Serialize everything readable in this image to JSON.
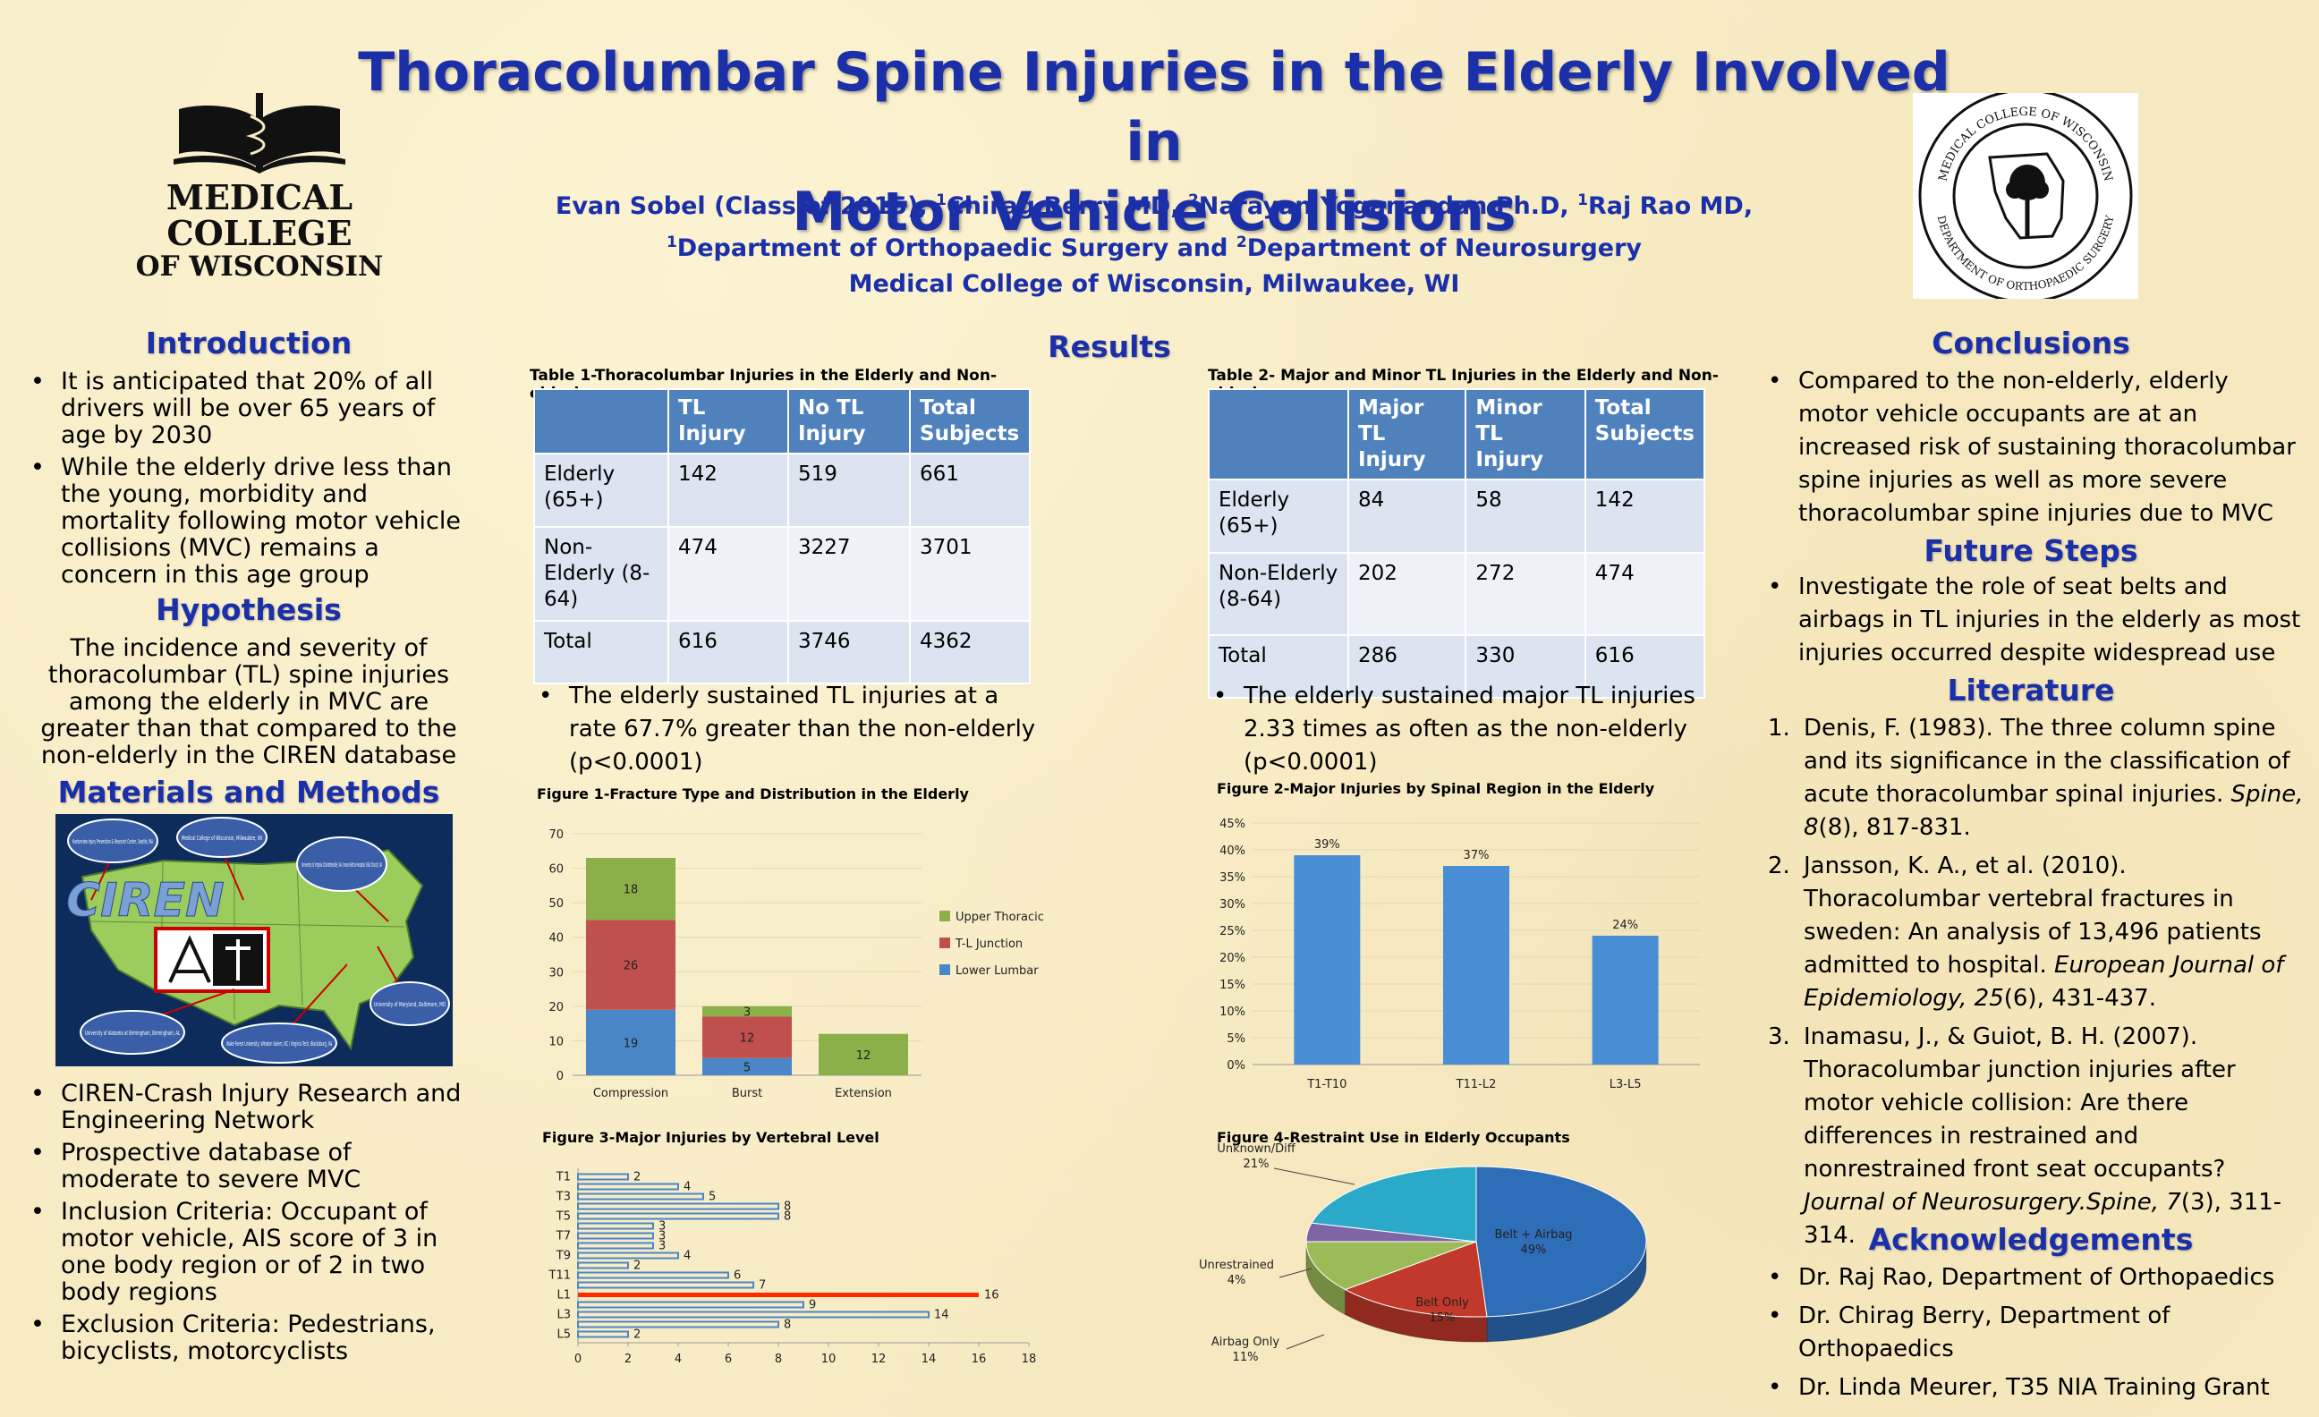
{
  "header": {
    "title_line1": "Thoracolumbar Spine Injuries in the Elderly Involved in",
    "title_line2": "Motor Vehicle Collisions",
    "authors": {
      "a1": "Evan Sobel (Class of 2015), ",
      "s1": "1",
      "a2": "Chirag Berry MD,  ",
      "s2": "2",
      "a3": "Narayan Yoganandan Ph.D, ",
      "s3": "1",
      "a4": "Raj Rao MD,"
    },
    "departments": {
      "s1": "1",
      "d1": "Department of Orthopaedic Surgery and ",
      "s2": "2",
      "d2": "Department of Neurosurgery"
    },
    "institution": "Medical College of Wisconsin, Milwaukee, WI"
  },
  "logo_left": {
    "line1": "MEDICAL",
    "line2": "COLLEGE",
    "line3": "OF WISCONSIN"
  },
  "logo_right": {
    "top_text": "MEDICAL COLLEGE OF WISCONSIN",
    "bottom_text": "DEPARTMENT OF ORTHOPAEDIC SURGERY"
  },
  "introduction": {
    "heading": "Introduction",
    "bullets": [
      "It is anticipated that 20% of all drivers will be over 65 years of age by 2030",
      "While the elderly drive less than the young, morbidity and mortality following motor vehicle collisions (MVC) remains a concern in this age group"
    ]
  },
  "hypothesis": {
    "heading": "Hypothesis",
    "text": "The incidence and severity of thoracolumbar (TL) spine injuries among the elderly in MVC are greater than that compared to the non-elderly in the CIREN database"
  },
  "methods": {
    "heading": "Materials and Methods",
    "map_label": "CIREN",
    "map_sites": [
      "Harborview Injury Prevention & Research Center, Seattle, WA",
      "Medical College of Wisconsin, Milwaukee, WI",
      "University of Virginia Charlottesville, VA / Inova Fairfax Hospital, Falls Church, VA",
      "University of Maryland, Baltimore, MD",
      "Wake Forest University, Winston Salem, NC / Virginia Tech, Blacksburg, VA",
      "University of Alabama at Birmingham, Birmingham, AL"
    ],
    "bullets": [
      "CIREN-Crash Injury Research and Engineering Network",
      "Prospective database of moderate to severe MVC",
      "Inclusion Criteria: Occupant of motor vehicle, AIS score of 3 in one body region or of 2 in two body regions",
      "Exclusion Criteria: Pedestrians, bicyclists, motorcyclists"
    ]
  },
  "results": {
    "heading": "Results",
    "table1": {
      "caption": "Table 1-Thoracolumbar Injuries in the Elderly and Non-elderly",
      "headers": [
        "",
        "TL Injury",
        "No TL Injury",
        "Total Subjects"
      ],
      "rows": [
        [
          "Elderly (65+)",
          "142",
          "519",
          "661"
        ],
        [
          "Non-Elderly (8-64)",
          "474",
          "3227",
          "3701"
        ],
        [
          "Total",
          "616",
          "3746",
          "4362"
        ]
      ],
      "note": "The elderly sustained TL injuries at a rate 67.7% greater than the non-elderly (p<0.0001)"
    },
    "table2": {
      "caption": "Table 2- Major and Minor TL Injuries in the Elderly and Non-elderly",
      "headers": [
        "",
        "Major TL Injury",
        "Minor TL Injury",
        "Total Subjects"
      ],
      "rows": [
        [
          "Elderly (65+)",
          "84",
          "58",
          "142"
        ],
        [
          "Non-Elderly (8-64)",
          "202",
          "272",
          "474"
        ],
        [
          "Total",
          "286",
          "330",
          "616"
        ]
      ],
      "note": "The elderly sustained major TL injuries 2.33 times as often as the non-elderly (p<0.0001)"
    }
  },
  "conclusions": {
    "heading": "Conclusions",
    "bullets": [
      "Compared to the non-elderly, elderly motor vehicle occupants are at an increased risk of sustaining thoracolumbar spine injuries as well as more severe thoracolumbar spine injuries due to MVC"
    ]
  },
  "future": {
    "heading": "Future Steps",
    "bullets": [
      "Investigate the role of seat belts and airbags in TL injuries in the elderly as most injuries occurred despite widespread use"
    ]
  },
  "literature": {
    "heading": "Literature",
    "refs": [
      {
        "num": "1.",
        "pre": "Denis, F. (1983). The three column spine and its significance in the classification of acute thoracolumbar spinal injuries. ",
        "journal": "Spine, 8",
        "post": "(8), 817-831."
      },
      {
        "num": "2.",
        "pre": "Jansson, K. A., et al. (2010). Thoracolumbar vertebral fractures in sweden: An analysis of 13,496 patients admitted to hospital. ",
        "journal": "European Journal of Epidemiology, 25",
        "post": "(6), 431-437."
      },
      {
        "num": "3.",
        "pre": "Inamasu, J., & Guiot, B. H. (2007). Thoracolumbar junction injuries after motor vehicle collision: Are there differences in restrained and nonrestrained front seat occupants? ",
        "journal": "Journal of Neurosurgery.Spine, 7",
        "post": "(3), 311-314."
      }
    ]
  },
  "acknowledgements": {
    "heading": "Acknowledgements",
    "bullets": [
      "Dr. Raj Rao, Department of Orthopaedics",
      "Dr. Chirag Berry, Department of Orthopaedics",
      "Dr. Linda Meurer, T35 NIA Training Grant"
    ]
  },
  "colors": {
    "title": "#1a2fa8",
    "lower_lumbar": "#4a86c8",
    "tl_junction": "#c0504d",
    "upper_thoracic": "#8bb04a",
    "table_header": "#4f81bd",
    "fig3_bar": "#4a86c8",
    "fig3_highlight": "#ff2a00"
  },
  "chart_data": [
    {
      "id": "fig1",
      "type": "bar",
      "stacked": true,
      "title": "Figure 1-Fracture Type and Distribution in the Elderly",
      "categories": [
        "Compression",
        "Burst",
        "Extension"
      ],
      "series": [
        {
          "name": "Lower Lumbar",
          "color": "#4a86c8",
          "values": [
            19,
            5,
            0
          ]
        },
        {
          "name": "T-L Junction",
          "color": "#c0504d",
          "values": [
            26,
            12,
            0
          ]
        },
        {
          "name": "Upper Thoracic",
          "color": "#8bb04a",
          "values": [
            18,
            3,
            12
          ]
        }
      ],
      "legend_order": [
        "Upper Thoracic",
        "T-L Junction",
        "Lower Lumbar"
      ],
      "ylim": [
        0,
        70
      ],
      "yticks": [
        0,
        10,
        20,
        30,
        40,
        50,
        60,
        70
      ],
      "legend": "right"
    },
    {
      "id": "fig2",
      "type": "bar",
      "title": "Figure 2-Major Injuries by Spinal Region in the Elderly",
      "categories": [
        "T1-T10",
        "T11-L2",
        "L3-L5"
      ],
      "values": [
        39,
        37,
        24
      ],
      "labels": [
        "39%",
        "37%",
        "24%"
      ],
      "ylim": [
        0,
        45
      ],
      "yticks": [
        "0%",
        "5%",
        "10%",
        "15%",
        "20%",
        "25%",
        "30%",
        "35%",
        "40%",
        "45%"
      ]
    },
    {
      "id": "fig3",
      "type": "bar",
      "orientation": "horizontal",
      "title": "Figure 3-Major Injuries by Vertebral Level",
      "categories": [
        "T1",
        "T2",
        "T3",
        "T4",
        "T5",
        "T6",
        "T7",
        "T8",
        "T9",
        "T10",
        "T11",
        "T12",
        "L1",
        "L2",
        "L3",
        "L4",
        "L5"
      ],
      "values": [
        2,
        4,
        5,
        8,
        8,
        3,
        3,
        3,
        4,
        2,
        6,
        7,
        16,
        9,
        14,
        8,
        2
      ],
      "highlight": "L1",
      "shown_tick_labels": [
        "T1",
        "T3",
        "T5",
        "T7",
        "T9",
        "T11",
        "L1",
        "L3",
        "L5"
      ],
      "xlim": [
        0,
        18
      ],
      "xticks": [
        "0",
        "2",
        "4",
        "6",
        "8",
        "10",
        "12",
        "14",
        "16",
        "18"
      ]
    },
    {
      "id": "fig4",
      "type": "pie",
      "title": "Figure 4-Restraint Use in Elderly Occupants",
      "slices": [
        {
          "name": "Belt + Airbag",
          "value": 49,
          "label": "49%",
          "color": "#2e6db8"
        },
        {
          "name": "Belt Only",
          "value": 15,
          "label": "15%",
          "color": "#c0392b"
        },
        {
          "name": "Airbag Only",
          "value": 11,
          "label": "11%",
          "color": "#9bbb59"
        },
        {
          "name": "Unrestrained",
          "value": 4,
          "label": "4%",
          "color": "#7f64a8"
        },
        {
          "name": "Unknown/Diff",
          "value": 21,
          "label": "21%",
          "color": "#2aa9c9"
        }
      ]
    }
  ]
}
